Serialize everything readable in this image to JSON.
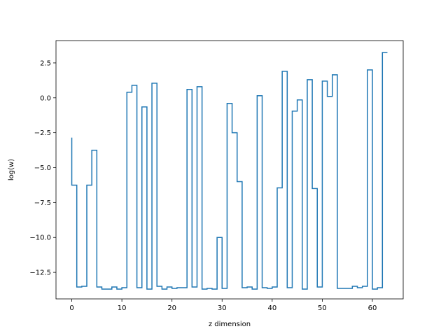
{
  "chart_data": {
    "type": "line",
    "drawstyle": "steps-post",
    "title": "",
    "xlabel": "z dimension",
    "ylabel": "log(w)",
    "xlim": [
      -3.15,
      66.15
    ],
    "ylim": [
      -14.4,
      4.1
    ],
    "xticks": [
      0,
      10,
      20,
      30,
      40,
      50,
      60
    ],
    "yticks": [
      -12.5,
      -10.0,
      -7.5,
      -5.0,
      -2.5,
      0.0,
      2.5
    ],
    "xtick_labels": [
      "0",
      "10",
      "20",
      "30",
      "40",
      "50",
      "60"
    ],
    "ytick_labels": [
      "−12.5",
      "−10.0",
      "−7.5",
      "−5.0",
      "−2.5",
      "0.0",
      "2.5"
    ],
    "grid": false,
    "legend": "none",
    "series": [
      {
        "color": "#1f77b4",
        "x": [
          0,
          1,
          2,
          3,
          4,
          5,
          6,
          7,
          8,
          9,
          10,
          11,
          12,
          13,
          14,
          15,
          16,
          17,
          18,
          19,
          20,
          21,
          22,
          23,
          24,
          25,
          26,
          27,
          28,
          29,
          30,
          31,
          32,
          33,
          34,
          35,
          36,
          37,
          38,
          39,
          40,
          41,
          42,
          43,
          44,
          45,
          46,
          47,
          48,
          49,
          50,
          51,
          52,
          53,
          54,
          55,
          56,
          57,
          58,
          59,
          60,
          61,
          62,
          63
        ],
        "y": [
          -2.85,
          -6.25,
          -13.55,
          -13.5,
          -6.25,
          -3.75,
          -13.55,
          -13.7,
          -13.7,
          -13.55,
          -13.7,
          -13.6,
          0.4,
          0.9,
          -13.6,
          -0.65,
          -13.7,
          1.05,
          -13.5,
          -13.7,
          -13.55,
          -13.65,
          -13.6,
          -13.6,
          0.6,
          -13.55,
          0.8,
          -13.7,
          -13.65,
          -13.7,
          -10.0,
          -13.65,
          -0.4,
          -2.5,
          -6.0,
          -13.6,
          -13.55,
          -13.7,
          0.15,
          -13.6,
          -13.65,
          -13.55,
          -6.45,
          1.9,
          -13.6,
          -0.95,
          -0.15,
          -13.7,
          1.3,
          -6.5,
          -13.55,
          1.2,
          0.1,
          1.65,
          -13.65,
          -13.65,
          -13.65,
          -13.5,
          -13.6,
          -13.5,
          2.0,
          -13.7,
          -13.6,
          3.25
        ]
      }
    ]
  }
}
